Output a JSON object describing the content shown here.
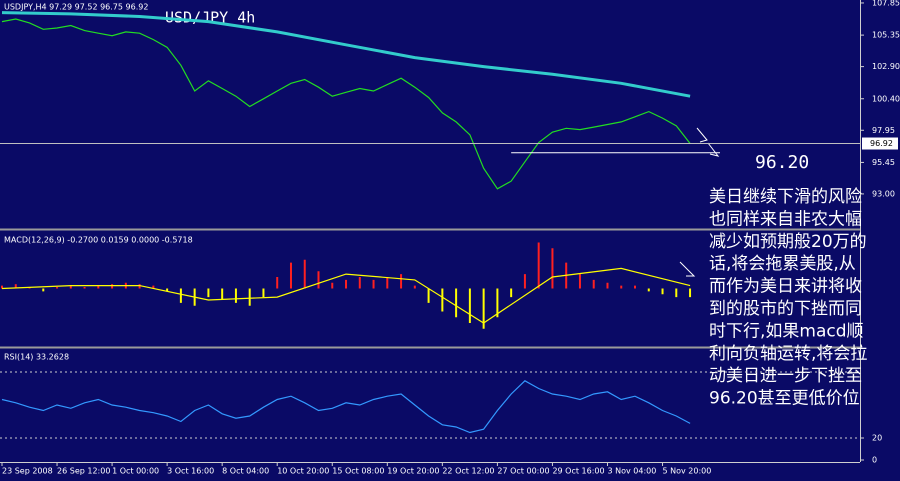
{
  "chart_data": [
    {
      "type": "line",
      "title": "USD/JPY 4h",
      "header": "USDJPY,H4 97.29 97.52 96.75 96.92",
      "xlim": [
        -0.58,
        249.4
      ],
      "ylim": [
        90.35,
        108.08
      ],
      "yticks": [
        107.85,
        105.35,
        {
          "value": 102.9,
          "label": "102.90"
        },
        {
          "value": 100.4,
          "label": "100.40"
        },
        97.95,
        95.45,
        {
          "value": 93.0,
          "label": "93.00"
        }
      ],
      "current_price": 96.92,
      "current_color": "#c0c0c0",
      "target": {
        "value": 96.2,
        "label": "96.20"
      },
      "series": [
        {
          "color": "#22dd22",
          "x": [
            0,
            4,
            8,
            12,
            16,
            20,
            24,
            28,
            32,
            36,
            40,
            44,
            48,
            52,
            56,
            60,
            64,
            68,
            72,
            76,
            80,
            84,
            88,
            92,
            96,
            100,
            104,
            108,
            112,
            116,
            120,
            124,
            128,
            132,
            136,
            140,
            144,
            148,
            152,
            156,
            160,
            164,
            168,
            172,
            176,
            180,
            184,
            188,
            192,
            196,
            200
          ],
          "values": [
            106.4,
            106.6,
            106.3,
            105.8,
            105.9,
            106.1,
            105.7,
            105.5,
            105.3,
            105.6,
            105.5,
            105.0,
            104.4,
            103.0,
            101.0,
            101.8,
            101.2,
            100.6,
            99.8,
            100.4,
            101.0,
            101.6,
            101.9,
            101.3,
            100.6,
            100.9,
            101.2,
            101.0,
            101.5,
            102.0,
            101.3,
            100.5,
            99.3,
            98.6,
            97.6,
            95.0,
            93.4,
            94.0,
            95.5,
            97.0,
            97.8,
            98.1,
            98.0,
            98.2,
            98.4,
            98.6,
            99.0,
            99.4,
            98.9,
            98.3,
            96.92
          ]
        },
        {
          "color": "#33cccc",
          "x": [
            0,
            20,
            40,
            60,
            80,
            100,
            120,
            140,
            160,
            180,
            200
          ],
          "values": [
            107.1,
            107.0,
            106.8,
            106.4,
            105.6,
            104.6,
            103.6,
            102.9,
            102.3,
            101.6,
            100.6
          ]
        }
      ],
      "annotation": {
        "lines": [
          "美日继续下滑的风险",
          "也同样来自非农大幅",
          "减少如预期般20万的",
          "话,将会拖累美股,从",
          "而作为美日来讲将收",
          "到的股市的下挫而同",
          "时下行,如果macd顺",
          "利向负轴运转,将会拉",
          "动美日进一步下挫至",
          "96.20甚至更低价位"
        ]
      }
    },
    {
      "type": "bar",
      "title": "MACD(12,26,9) -0.2700 0.0159 0.0000 -0.5718",
      "xlim": [
        -0.58,
        249.4
      ],
      "ylim": [
        -2.0,
        2.0
      ],
      "positive_color": "#ff2020",
      "negative_color": "#ffff00",
      "x": [
        0,
        4,
        8,
        12,
        16,
        20,
        24,
        28,
        32,
        36,
        40,
        44,
        48,
        52,
        56,
        60,
        64,
        68,
        72,
        76,
        80,
        84,
        88,
        92,
        96,
        100,
        104,
        108,
        112,
        116,
        120,
        124,
        128,
        132,
        136,
        140,
        144,
        148,
        152,
        156,
        160,
        164,
        168,
        172,
        176,
        180,
        184,
        188,
        192,
        196,
        200
      ],
      "values": [
        0.1,
        0.15,
        0.05,
        -0.1,
        0.05,
        0.1,
        0.05,
        0.1,
        0.15,
        0.2,
        0.15,
        0.1,
        -0.1,
        -0.5,
        -0.6,
        -0.3,
        -0.4,
        -0.5,
        -0.6,
        -0.3,
        0.4,
        0.9,
        1.0,
        0.6,
        0.2,
        0.3,
        0.4,
        0.3,
        0.4,
        0.5,
        0.1,
        -0.5,
        -0.8,
        -1.0,
        -1.2,
        -1.4,
        -1.0,
        -0.3,
        0.5,
        1.6,
        1.4,
        0.9,
        0.5,
        0.3,
        0.2,
        0.1,
        0.1,
        -0.1,
        -0.2,
        -0.3,
        -0.3
      ],
      "line": {
        "color": "#ffff00",
        "x": [
          0,
          20,
          40,
          60,
          80,
          100,
          120,
          140,
          160,
          180,
          200
        ],
        "values": [
          0.0,
          0.1,
          0.1,
          -0.4,
          -0.3,
          0.5,
          0.3,
          -1.2,
          0.4,
          0.7,
          0.1
        ]
      }
    },
    {
      "type": "line",
      "title": "RSI(14) 33.2628",
      "xlim": [
        -0.58,
        249.4
      ],
      "ylim": [
        0,
        100
      ],
      "yticks": [
        20,
        0
      ],
      "levels": [
        20,
        80
      ],
      "xticks": [
        {
          "value": 0,
          "label": "23 Sep 2008"
        },
        {
          "value": 16,
          "label": "26 Sep 12:00"
        },
        {
          "value": 32,
          "label": "1 Oct 00:00"
        },
        {
          "value": 48,
          "label": "3 Oct 16:00"
        },
        {
          "value": 64,
          "label": "8 Oct 04:00"
        },
        {
          "value": 80,
          "label": "10 Oct 20:00"
        },
        {
          "value": 96,
          "label": "15 Oct 08:00"
        },
        {
          "value": 112,
          "label": "19 Oct 20:00"
        },
        {
          "value": 128,
          "label": "22 Oct 12:00"
        },
        {
          "value": 144,
          "label": "27 Oct 00:00"
        },
        {
          "value": 160,
          "label": "29 Oct 16:00"
        },
        {
          "value": 176,
          "label": "3 Nov 04:00"
        },
        {
          "value": 192,
          "label": "5 Nov 20:00"
        }
      ],
      "series": [
        {
          "color": "#3399ff",
          "x": [
            0,
            4,
            8,
            12,
            16,
            20,
            24,
            28,
            32,
            36,
            40,
            44,
            48,
            52,
            56,
            60,
            64,
            68,
            72,
            76,
            80,
            84,
            88,
            92,
            96,
            100,
            104,
            108,
            112,
            116,
            120,
            124,
            128,
            132,
            136,
            140,
            144,
            148,
            152,
            156,
            160,
            164,
            168,
            172,
            176,
            180,
            184,
            188,
            192,
            196,
            200
          ],
          "values": [
            55,
            52,
            48,
            45,
            50,
            47,
            52,
            55,
            50,
            48,
            45,
            43,
            40,
            35,
            45,
            50,
            42,
            38,
            40,
            48,
            55,
            58,
            52,
            45,
            47,
            52,
            50,
            55,
            58,
            60,
            50,
            40,
            32,
            30,
            25,
            28,
            45,
            60,
            72,
            65,
            60,
            58,
            55,
            60,
            62,
            55,
            58,
            52,
            45,
            40,
            33.26
          ]
        }
      ]
    }
  ]
}
